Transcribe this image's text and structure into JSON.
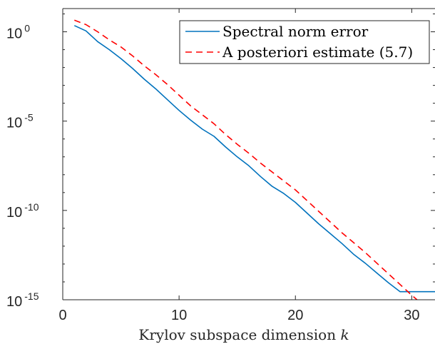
{
  "chart_data": {
    "type": "line",
    "xlabel": "Krylov subspace dimension k",
    "xlim": [
      0,
      32
    ],
    "xticks": [
      "0",
      "10",
      "20",
      "30"
    ],
    "xtick_values": [
      0,
      10,
      20,
      30
    ],
    "yscale": "log",
    "ylim_exp": [
      -15,
      1.3
    ],
    "ytick_exponents": [
      0,
      -5,
      -10,
      -15
    ],
    "ytick_base": "10",
    "ytick_exp_labels": [
      "0",
      "-5",
      "-10",
      "-15"
    ],
    "grid": false,
    "legend_position": "top-right",
    "series": [
      {
        "name": "Spectral norm error",
        "color": "#0072BD",
        "style": "solid",
        "x": [
          1,
          2,
          3,
          4,
          5,
          6,
          7,
          8,
          9,
          10,
          11,
          12,
          13,
          14,
          15,
          16,
          17,
          18,
          19,
          20,
          21,
          22,
          23,
          24,
          25,
          26,
          27,
          28,
          29,
          30,
          31,
          32
        ],
        "log10_y": [
          0.35,
          0.05,
          -0.55,
          -1.0,
          -1.5,
          -2.05,
          -2.65,
          -3.2,
          -3.8,
          -4.4,
          -4.95,
          -5.45,
          -5.85,
          -6.45,
          -7.0,
          -7.5,
          -8.1,
          -8.65,
          -9.05,
          -9.55,
          -10.15,
          -10.75,
          -11.3,
          -11.85,
          -12.45,
          -12.95,
          -13.5,
          -14.05,
          -14.55,
          -14.55,
          -14.55,
          -14.55
        ]
      },
      {
        "name": "A posteriori estimate (5.7)",
        "color": "#FF0000",
        "style": "dashed",
        "x": [
          1,
          2,
          3,
          4,
          5,
          6,
          7,
          8,
          9,
          10,
          11,
          12,
          13,
          14,
          15,
          16,
          17,
          18,
          19,
          20,
          21,
          22,
          23,
          24,
          25,
          26,
          27,
          28,
          29,
          30,
          31,
          32
        ],
        "log10_y": [
          0.65,
          0.4,
          0.0,
          -0.45,
          -0.85,
          -1.35,
          -1.9,
          -2.4,
          -2.95,
          -3.55,
          -4.15,
          -4.65,
          -5.15,
          -5.75,
          -6.3,
          -6.8,
          -7.35,
          -7.85,
          -8.35,
          -8.85,
          -9.45,
          -10.05,
          -10.65,
          -11.25,
          -11.8,
          -12.35,
          -12.95,
          -13.55,
          -14.15,
          -14.75,
          -15.3,
          -15.85
        ]
      }
    ],
    "legend": {
      "entries": [
        "Spectral norm error",
        "A posteriori estimate (5.7)"
      ]
    }
  }
}
